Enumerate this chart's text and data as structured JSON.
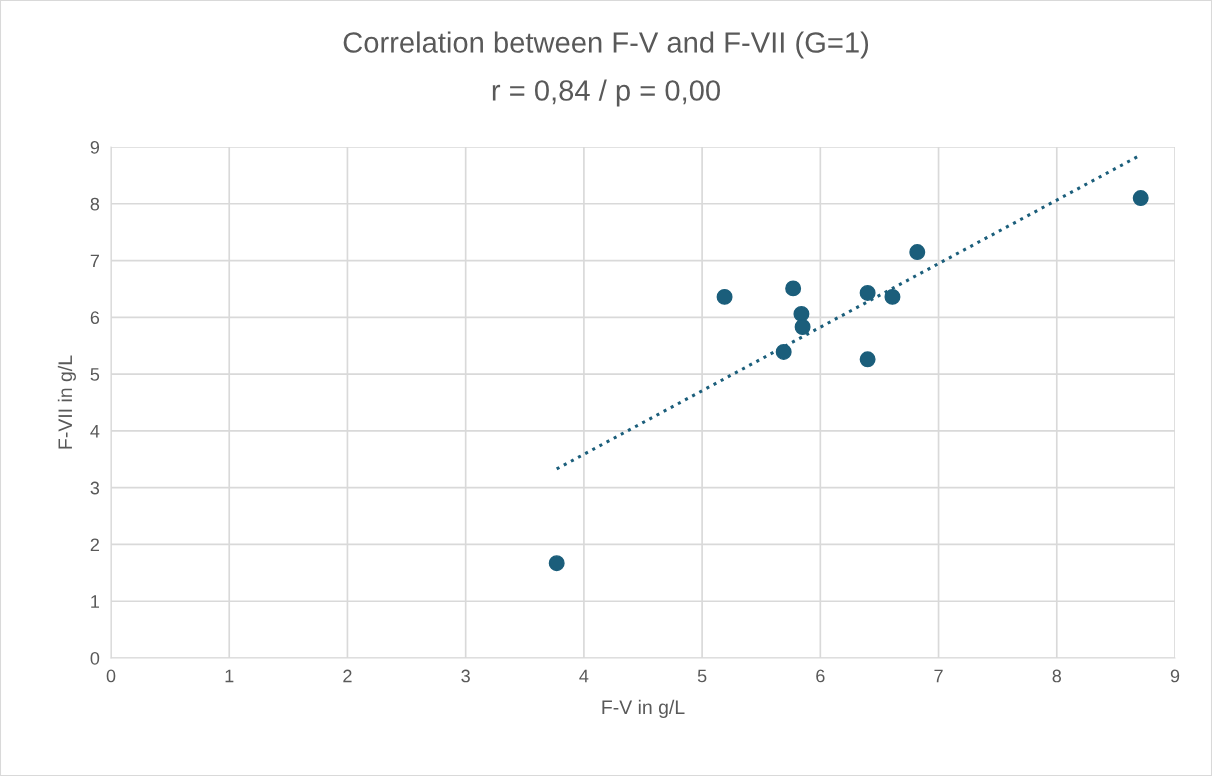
{
  "chart_data": {
    "type": "scatter",
    "title": "Correlation between F-V and F-VII (G=1)",
    "subtitle": "r = 0,84 / p = 0,00",
    "xlabel": "F-V in g/L",
    "ylabel": "F-VII in g/L",
    "xlim": [
      0,
      9
    ],
    "xticks": [
      0,
      1,
      2,
      3,
      4,
      5,
      6,
      7,
      8,
      9
    ],
    "ylim": [
      0,
      9
    ],
    "yticks": [
      0,
      1,
      2,
      3,
      4,
      5,
      6,
      7,
      8,
      9
    ],
    "grid": true,
    "legend": false,
    "series": [
      {
        "color": "#1b5e7b",
        "marker": "circle",
        "x": [
          3.77,
          5.19,
          5.69,
          5.77,
          5.84,
          5.85,
          6.4,
          6.4,
          6.61,
          6.82,
          8.71
        ],
        "values": [
          1.67,
          6.36,
          5.39,
          6.51,
          6.06,
          5.83,
          6.43,
          5.26,
          6.36,
          7.15,
          8.1
        ]
      },
      {
        "type": "line",
        "color": "#1b5e7b",
        "marker": "none",
        "line_style": "dotted",
        "x": [
          3.77,
          8.71
        ],
        "values": [
          3.33,
          8.86
        ]
      }
    ]
  }
}
